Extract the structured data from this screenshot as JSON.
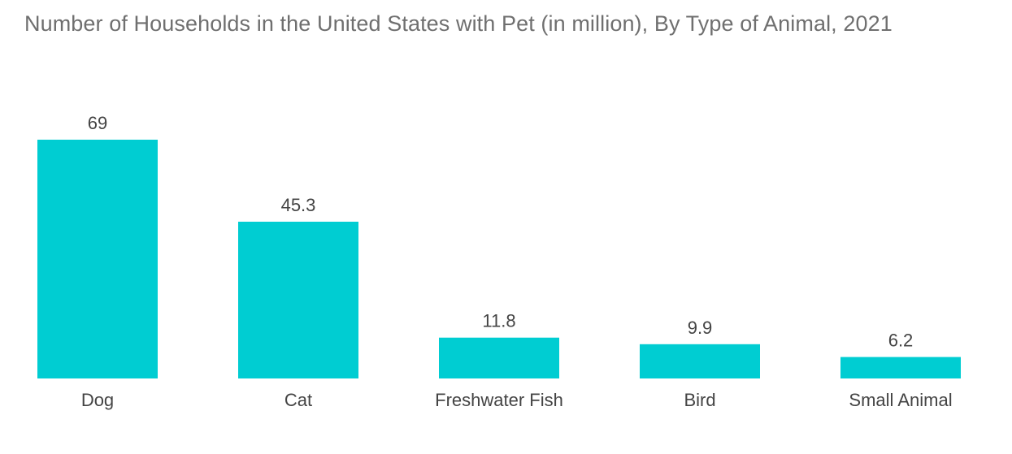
{
  "title": "Number of Households in the United States with Pet (in million), By Type of Animal, 2021",
  "colors": {
    "bar": "#00cdd2"
  },
  "chart_data": {
    "type": "bar",
    "title": "Number of Households in the United States with Pet (in million), By Type of Animal, 2021",
    "categories": [
      "Dog",
      "Cat",
      "Freshwater Fish",
      "Bird",
      "Small Animal"
    ],
    "values": [
      69,
      45.3,
      11.8,
      9.9,
      6.2
    ],
    "value_labels": [
      "69",
      "45.3",
      "11.8",
      "9.9",
      "6.2"
    ],
    "xlabel": "",
    "ylabel": "",
    "ylim": [
      0,
      69
    ],
    "grid": false,
    "legend": "none"
  }
}
